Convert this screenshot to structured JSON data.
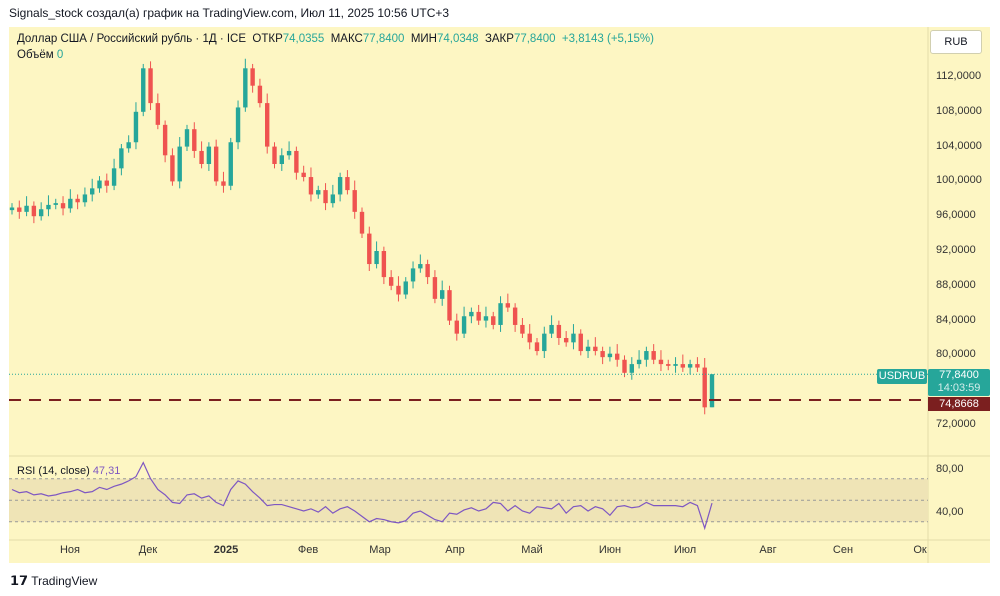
{
  "caption": "Signals_stock создал(а) график на TradingView.com, Июл 11, 2025 10:56 UTC+3",
  "legend": {
    "symbol": "Доллар США / Российский рубль · 1Д · ICE",
    "open_label": "ОТКР",
    "open": "74,0355",
    "high_label": "МАКС",
    "high": "77,8400",
    "low_label": "МИН",
    "low": "74,0348",
    "close_label": "ЗАКР",
    "close": "77,8400",
    "change": "+3,8143 (+5,15%)",
    "volume_label": "Объём",
    "volume": "0"
  },
  "currency_button": "RUB",
  "price_axis": [
    "112,0000",
    "108,0000",
    "104,0000",
    "100,0000",
    "96,0000",
    "92,0000",
    "88,0000",
    "84,0000",
    "80,0000",
    "72,0000"
  ],
  "last_price": {
    "symbol": "USDRUB",
    "price": "77,8400",
    "countdown": "14:03:59",
    "value": 77.84
  },
  "level_line": {
    "label": "74,8668",
    "value": 74.8668
  },
  "rsi": {
    "label": "RSI (14, close)",
    "value": "47,31",
    "axis": [
      "80,00",
      "40,00"
    ],
    "bands": [
      70,
      50,
      30
    ],
    "values": [
      60,
      57,
      58,
      55,
      56,
      54,
      55,
      57,
      58,
      60,
      57,
      58,
      62,
      60,
      63,
      65,
      68,
      72,
      85,
      70,
      60,
      55,
      48,
      47,
      55,
      56,
      52,
      54,
      48,
      45,
      60,
      68,
      65,
      58,
      52,
      45,
      46,
      46,
      44,
      42,
      40,
      42,
      39,
      44,
      38,
      42,
      44,
      40,
      35,
      30,
      33,
      32,
      30,
      29,
      31,
      38,
      40,
      36,
      32,
      30,
      38,
      37,
      41,
      43,
      40,
      42,
      48,
      47,
      40,
      45,
      40,
      38,
      44,
      43,
      42,
      47,
      38,
      44,
      45,
      40,
      44,
      42,
      36,
      44,
      45,
      43,
      44,
      48,
      45,
      45,
      45,
      45,
      44,
      48,
      45,
      24,
      47.31
    ]
  },
  "time_axis": [
    "Ноя",
    "Дек",
    "2025",
    "Фев",
    "Мар",
    "Апр",
    "Май",
    "Июн",
    "Июл",
    "Авг",
    "Сен",
    "Ок"
  ],
  "colors": {
    "up": "#26a69a",
    "down": "#ef5350",
    "background": "#fdf6c3",
    "rsi": "#7e57c2",
    "level": "#7b1f1f"
  },
  "chart_data": {
    "type": "candlestick",
    "ylim": [
      70,
      116
    ],
    "closes": [
      97.0,
      96.5,
      97.2,
      96.0,
      96.8,
      97.3,
      97.5,
      96.9,
      98.0,
      97.6,
      98.5,
      99.2,
      100.1,
      99.5,
      101.5,
      103.8,
      104.5,
      108.0,
      113.0,
      109.0,
      106.5,
      103.0,
      100.0,
      104.0,
      106.0,
      103.5,
      102.0,
      104.0,
      100.0,
      99.5,
      104.5,
      108.5,
      113.0,
      111.0,
      109.0,
      104.0,
      102.0,
      103.0,
      103.5,
      101.0,
      100.5,
      98.5,
      99.0,
      97.5,
      98.5,
      100.5,
      99.0,
      96.5,
      94.0,
      90.5,
      92.0,
      89.0,
      88.0,
      87.0,
      88.5,
      90.0,
      90.5,
      89.0,
      86.5,
      87.5,
      84.0,
      82.5,
      84.5,
      85.0,
      84.0,
      84.5,
      83.5,
      86.0,
      85.5,
      83.5,
      82.5,
      81.5,
      80.5,
      82.5,
      83.5,
      82.0,
      81.5,
      82.5,
      80.5,
      81.0,
      80.5,
      79.8,
      80.2,
      79.5,
      78.0,
      79.0,
      79.5,
      80.5,
      79.5,
      79.0,
      78.8,
      79.0,
      78.6,
      79.0,
      78.6,
      74.03,
      77.84
    ],
    "last_candle": {
      "open": 74.0355,
      "high": 77.84,
      "low": 74.0348,
      "close": 77.84
    }
  },
  "footer": "TradingView"
}
